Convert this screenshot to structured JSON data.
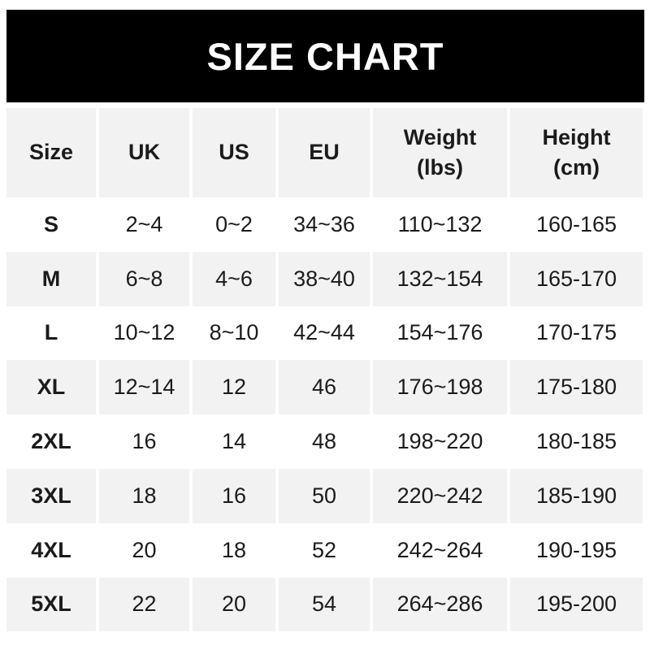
{
  "banner": {
    "title": "SIZE CHART"
  },
  "colors": {
    "banner_bg": "#000000",
    "banner_text": "#ffffff",
    "cell_gray": "#f2f2f2",
    "row_white": "#ffffff",
    "text": "#1b1b1b"
  },
  "table": {
    "columns": [
      {
        "key": "size",
        "lines": [
          "Size"
        ]
      },
      {
        "key": "uk",
        "lines": [
          "UK"
        ]
      },
      {
        "key": "us",
        "lines": [
          "US"
        ]
      },
      {
        "key": "eu",
        "lines": [
          "EU"
        ]
      },
      {
        "key": "weight",
        "lines": [
          "Weight",
          "(lbs)"
        ]
      },
      {
        "key": "height",
        "lines": [
          "Height",
          "(cm)"
        ]
      }
    ],
    "rows": [
      [
        "S",
        "2~4",
        "0~2",
        "34~36",
        "110~132",
        "160-165"
      ],
      [
        "M",
        "6~8",
        "4~6",
        "38~40",
        "132~154",
        "165-170"
      ],
      [
        "L",
        "10~12",
        "8~10",
        "42~44",
        "154~176",
        "170-175"
      ],
      [
        "XL",
        "12~14",
        "12",
        "46",
        "176~198",
        "175-180"
      ],
      [
        "2XL",
        "16",
        "14",
        "48",
        "198~220",
        "180-185"
      ],
      [
        "3XL",
        "18",
        "16",
        "50",
        "220~242",
        "185-190"
      ],
      [
        "4XL",
        "20",
        "18",
        "52",
        "242~264",
        "190-195"
      ],
      [
        "5XL",
        "22",
        "20",
        "54",
        "264~286",
        "195-200"
      ]
    ]
  },
  "chart_data": {
    "type": "table",
    "title": "SIZE CHART",
    "columns": [
      "Size",
      "UK",
      "US",
      "EU",
      "Weight (lbs)",
      "Height (cm)"
    ],
    "rows": [
      [
        "S",
        "2~4",
        "0~2",
        "34~36",
        "110~132",
        "160-165"
      ],
      [
        "M",
        "6~8",
        "4~6",
        "38~40",
        "132~154",
        "165-170"
      ],
      [
        "L",
        "10~12",
        "8~10",
        "42~44",
        "154~176",
        "170-175"
      ],
      [
        "XL",
        "12~14",
        "12",
        "46",
        "176~198",
        "175-180"
      ],
      [
        "2XL",
        "16",
        "14",
        "48",
        "198~220",
        "180-185"
      ],
      [
        "3XL",
        "18",
        "16",
        "50",
        "220~242",
        "185-190"
      ],
      [
        "4XL",
        "20",
        "18",
        "52",
        "242~264",
        "190-195"
      ],
      [
        "5XL",
        "22",
        "20",
        "54",
        "264~286",
        "195-200"
      ]
    ],
    "layout": {
      "header_background": "#f2f2f2",
      "row_stripe_pattern": [
        "#ffffff",
        "#f2f2f2"
      ],
      "banner_background": "#000000"
    }
  }
}
